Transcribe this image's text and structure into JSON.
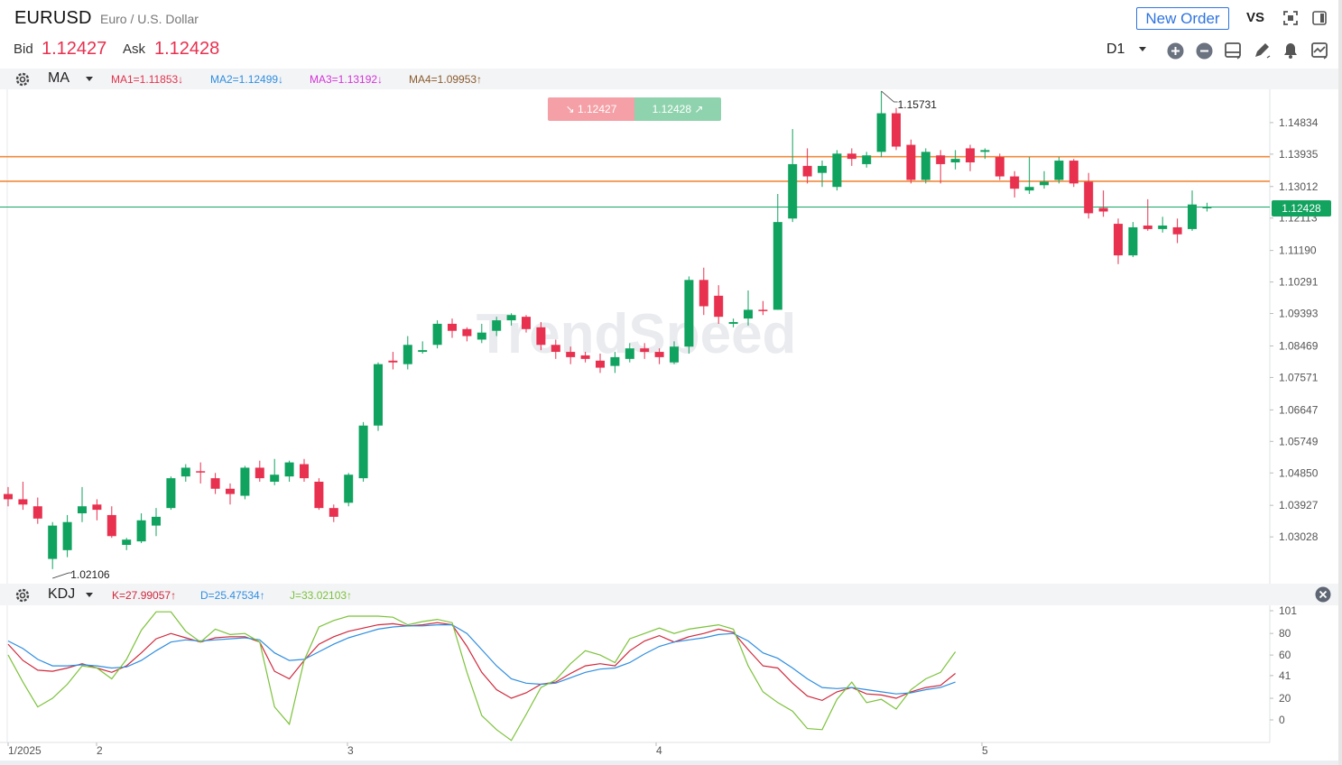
{
  "header": {
    "symbol": "EURUSD",
    "description": "Euro / U.S. Dollar",
    "bid_label": "Bid",
    "bid_value": "1.12427",
    "ask_label": "Ask",
    "ask_value": "1.12428",
    "new_order_label": "New Order",
    "vs_label": "VS",
    "timeframe": "D1"
  },
  "indicators": {
    "main": {
      "name": "MA",
      "values": [
        {
          "label": "MA1=1.11853↓",
          "color": "#e2334c"
        },
        {
          "label": "MA2=1.12499↓",
          "color": "#2f8ee0"
        },
        {
          "label": "MA3=1.13192↓",
          "color": "#d433d8"
        },
        {
          "label": "MA4=1.09953↑",
          "color": "#8a5a2b"
        }
      ]
    },
    "sub": {
      "name": "KDJ",
      "values": [
        {
          "label": "K=27.99057↑",
          "color": "#d0283c"
        },
        {
          "label": "D=25.47534↑",
          "color": "#2f8ee0"
        },
        {
          "label": "J=33.02103↑",
          "color": "#7cc23a"
        }
      ]
    }
  },
  "badges": {
    "sell": "1.12427",
    "buy": "1.12428",
    "current_price": "1.12428"
  },
  "annotations": {
    "high": "1.15731",
    "low": "1.02106"
  },
  "watermark": "TrendSpeed",
  "chart_data": [
    {
      "type": "candlestick",
      "title": "EURUSD D1",
      "ylim": [
        1.02106,
        1.15731
      ],
      "y_ticks": [
        "1.14834",
        "1.13935",
        "1.13012",
        "1.12113",
        "1.11190",
        "1.10291",
        "1.09393",
        "1.08469",
        "1.07571",
        "1.06647",
        "1.05749",
        "1.04850",
        "1.03927",
        "1.03028"
      ],
      "x_ticks": [
        "1/2025",
        "2",
        "3",
        "4",
        "5"
      ],
      "horizontal_lines": [
        1.13863,
        1.13163
      ],
      "current_price": 1.12428,
      "candles": [
        [
          1.0425,
          1.0445,
          1.039,
          1.041
        ],
        [
          1.041,
          1.046,
          1.038,
          1.0395
        ],
        [
          1.039,
          1.0415,
          1.034,
          1.0355
        ],
        [
          1.024,
          1.0345,
          1.0211,
          1.0335
        ],
        [
          1.0265,
          1.0365,
          1.0245,
          1.0345
        ],
        [
          1.037,
          1.0445,
          1.0345,
          1.039
        ],
        [
          1.0395,
          1.041,
          1.035,
          1.038
        ],
        [
          1.0365,
          1.039,
          1.03,
          1.0305
        ],
        [
          1.028,
          1.03,
          1.0265,
          1.0295
        ],
        [
          1.029,
          1.037,
          1.0285,
          1.035
        ],
        [
          1.0335,
          1.0385,
          1.0305,
          1.036
        ],
        [
          1.0385,
          1.0475,
          1.038,
          1.047
        ],
        [
          1.0475,
          1.051,
          1.046,
          1.05
        ],
        [
          1.049,
          1.0515,
          1.0455,
          1.0488
        ],
        [
          1.047,
          1.0485,
          1.0425,
          1.044
        ],
        [
          1.044,
          1.0455,
          1.0395,
          1.0425
        ],
        [
          1.042,
          1.0505,
          1.041,
          1.05
        ],
        [
          1.05,
          1.052,
          1.046,
          1.047
        ],
        [
          1.046,
          1.0525,
          1.045,
          1.048
        ],
        [
          1.0475,
          1.052,
          1.046,
          1.0515
        ],
        [
          1.051,
          1.0525,
          1.046,
          1.047
        ],
        [
          1.046,
          1.047,
          1.038,
          1.0385
        ],
        [
          1.0385,
          1.0395,
          1.0345,
          1.036
        ],
        [
          1.04,
          1.0485,
          1.039,
          1.048
        ],
        [
          1.047,
          1.063,
          1.046,
          1.062
        ],
        [
          1.062,
          1.08,
          1.0605,
          1.0795
        ],
        [
          1.0805,
          1.083,
          1.078,
          1.08
        ],
        [
          1.0795,
          1.0875,
          1.078,
          1.085
        ],
        [
          1.083,
          1.086,
          1.0825,
          1.0835
        ],
        [
          1.085,
          1.092,
          1.084,
          1.091
        ],
        [
          1.091,
          1.0925,
          1.087,
          1.089
        ],
        [
          1.0895,
          1.09,
          1.086,
          1.0875
        ],
        [
          1.0865,
          1.091,
          1.0855,
          1.0885
        ],
        [
          1.089,
          1.093,
          1.0875,
          1.092
        ],
        [
          1.092,
          1.094,
          1.0905,
          1.0935
        ],
        [
          1.093,
          1.0935,
          1.0885,
          1.0895
        ],
        [
          1.09,
          1.0915,
          1.0835,
          1.085
        ],
        [
          1.085,
          1.0865,
          1.081,
          1.083
        ],
        [
          1.083,
          1.0845,
          1.0795,
          1.0815
        ],
        [
          1.082,
          1.083,
          1.08,
          1.081
        ],
        [
          1.0805,
          1.0825,
          1.077,
          1.0785
        ],
        [
          1.079,
          1.083,
          1.077,
          1.0815
        ],
        [
          1.081,
          1.0855,
          1.08,
          1.084
        ],
        [
          1.084,
          1.0855,
          1.081,
          1.083
        ],
        [
          1.083,
          1.084,
          1.0795,
          1.0815
        ],
        [
          1.08,
          1.086,
          1.0795,
          1.0845
        ],
        [
          1.0845,
          1.1045,
          1.0825,
          1.1035
        ],
        [
          1.1035,
          1.107,
          1.0935,
          1.096
        ],
        [
          1.099,
          1.102,
          1.091,
          1.093
        ],
        [
          1.091,
          1.0925,
          1.09,
          1.0915
        ],
        [
          1.0925,
          1.1005,
          1.0905,
          1.095
        ],
        [
          1.095,
          1.0975,
          1.0935,
          1.0948
        ],
        [
          1.095,
          1.128,
          1.095,
          1.12
        ],
        [
          1.121,
          1.1465,
          1.12,
          1.1365
        ],
        [
          1.136,
          1.141,
          1.131,
          1.133
        ],
        [
          1.134,
          1.1375,
          1.13,
          1.136
        ],
        [
          1.13,
          1.1405,
          1.129,
          1.1395
        ],
        [
          1.1395,
          1.141,
          1.136,
          1.138
        ],
        [
          1.1365,
          1.14,
          1.1355,
          1.139
        ],
        [
          1.14,
          1.1573,
          1.1385,
          1.151
        ],
        [
          1.151,
          1.1525,
          1.1405,
          1.1415
        ],
        [
          1.142,
          1.1435,
          1.131,
          1.132
        ],
        [
          1.132,
          1.141,
          1.131,
          1.14
        ],
        [
          1.139,
          1.1405,
          1.131,
          1.1365
        ],
        [
          1.137,
          1.1405,
          1.135,
          1.138
        ],
        [
          1.141,
          1.142,
          1.1345,
          1.137
        ],
        [
          1.14,
          1.141,
          1.138,
          1.1405
        ],
        [
          1.1385,
          1.1395,
          1.132,
          1.133
        ],
        [
          1.133,
          1.1345,
          1.127,
          1.1295
        ],
        [
          1.129,
          1.1385,
          1.128,
          1.13
        ],
        [
          1.1305,
          1.1345,
          1.1295,
          1.1315
        ],
        [
          1.132,
          1.1385,
          1.131,
          1.1375
        ],
        [
          1.1375,
          1.138,
          1.13,
          1.131
        ],
        [
          1.1315,
          1.134,
          1.121,
          1.1225
        ],
        [
          1.124,
          1.129,
          1.1215,
          1.123
        ],
        [
          1.1195,
          1.121,
          1.108,
          1.1105
        ],
        [
          1.1105,
          1.12,
          1.11,
          1.1185
        ],
        [
          1.119,
          1.1265,
          1.1175,
          1.118
        ],
        [
          1.118,
          1.1215,
          1.117,
          1.119
        ],
        [
          1.1185,
          1.121,
          1.114,
          1.1165
        ],
        [
          1.118,
          1.129,
          1.1175,
          1.125
        ],
        [
          1.124,
          1.1255,
          1.123,
          1.1243
        ]
      ]
    },
    {
      "type": "line",
      "title": "KDJ",
      "ylim": [
        -20,
        105
      ],
      "y_ticks": [
        "101",
        "80",
        "60",
        "41",
        "20",
        "0"
      ],
      "series": [
        {
          "name": "K",
          "color": "#d0283c",
          "values": [
            70,
            55,
            46,
            45,
            48,
            52,
            48,
            44,
            50,
            62,
            75,
            80,
            76,
            72,
            76,
            77,
            77,
            72,
            45,
            38,
            55,
            70,
            77,
            82,
            85,
            88,
            89,
            87,
            88,
            90,
            88,
            68,
            44,
            28,
            20,
            25,
            33,
            35,
            43,
            50,
            52,
            50,
            64,
            73,
            78,
            72,
            77,
            80,
            84,
            81,
            65,
            50,
            48,
            34,
            22,
            18,
            26,
            30,
            24,
            23,
            20,
            26,
            30,
            32,
            43
          ]
        },
        {
          "name": "D",
          "color": "#2f8ee0",
          "values": [
            73,
            66,
            56,
            50,
            50,
            51,
            50,
            48,
            49,
            55,
            64,
            72,
            74,
            73,
            74,
            75,
            76,
            74,
            62,
            55,
            56,
            63,
            70,
            76,
            80,
            84,
            86,
            87,
            87,
            88,
            88,
            80,
            65,
            50,
            38,
            34,
            33,
            34,
            39,
            44,
            47,
            48,
            53,
            61,
            68,
            72,
            74,
            76,
            79,
            80,
            73,
            62,
            57,
            48,
            38,
            30,
            29,
            30,
            28,
            26,
            24,
            25,
            28,
            30,
            35
          ]
        },
        {
          "name": "J",
          "color": "#7cc23a",
          "values": [
            60,
            35,
            12,
            20,
            33,
            50,
            48,
            38,
            56,
            83,
            100,
            100,
            82,
            72,
            84,
            79,
            80,
            72,
            12,
            -4,
            55,
            86,
            92,
            96,
            96,
            96,
            95,
            88,
            91,
            93,
            90,
            44,
            4,
            -9,
            -19,
            5,
            30,
            37,
            52,
            64,
            60,
            53,
            75,
            80,
            85,
            80,
            84,
            86,
            88,
            84,
            50,
            26,
            16,
            8,
            -8,
            -9,
            19,
            35,
            16,
            19,
            10,
            28,
            38,
            44,
            63
          ]
        }
      ]
    }
  ]
}
